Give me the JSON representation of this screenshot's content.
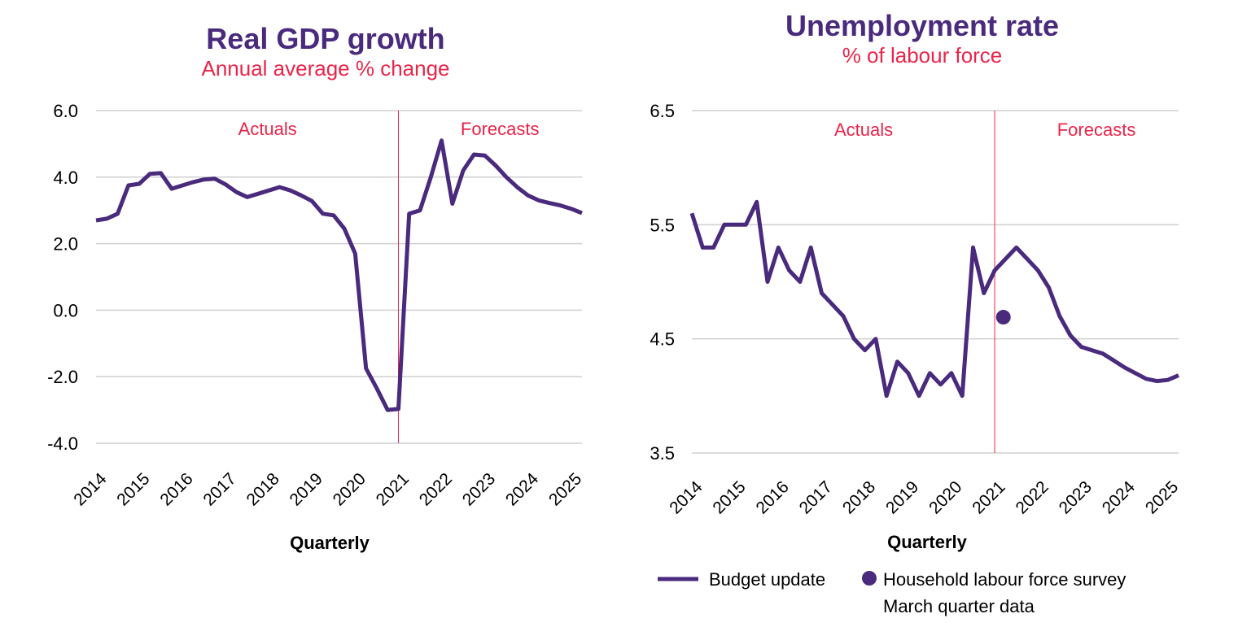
{
  "colors": {
    "series": "#4a2a7d",
    "accent": "#e8254a",
    "grid": "#d0d0d0",
    "text": "#000000"
  },
  "chart_data": [
    {
      "type": "line",
      "title": "Real GDP growth",
      "subtitle": "Annual average % change",
      "xlabel": "Quarterly",
      "ylabel": "",
      "ylim": [
        -4.0,
        6.0
      ],
      "yticks": [
        "6.0",
        "4.0",
        "2.0",
        "0.0",
        "-2.0",
        "-4.0"
      ],
      "yticks_values": [
        6,
        4,
        2,
        0,
        -2,
        -4
      ],
      "xticks": [
        "2014",
        "2015",
        "2016",
        "2017",
        "2018",
        "2019",
        "2020",
        "2021",
        "2022",
        "2023",
        "2024",
        "2025"
      ],
      "x_start": 2014.0,
      "x_step": 0.25,
      "divider_x": 2021.0,
      "regions": [
        "Actuals",
        "Forecasts"
      ],
      "grid": true,
      "series": [
        {
          "values": [
            2.7,
            2.75,
            2.9,
            3.75,
            3.8,
            4.1,
            4.12,
            3.65,
            3.75,
            3.85,
            3.93,
            3.95,
            3.78,
            3.55,
            3.4,
            3.5,
            3.6,
            3.7,
            3.6,
            3.45,
            3.28,
            2.9,
            2.85,
            2.45,
            1.7,
            -1.75,
            -2.35,
            -3.0,
            -2.97,
            2.9,
            3.0,
            4.0,
            5.1,
            3.2,
            4.2,
            4.68,
            4.65,
            4.35,
            4.0,
            3.7,
            3.45,
            3.3,
            3.22,
            3.15,
            3.05,
            2.92
          ]
        }
      ]
    },
    {
      "type": "line",
      "title": "Unemployment rate",
      "subtitle": "% of labour force",
      "xlabel": "Quarterly",
      "ylabel": "",
      "ylim": [
        3.5,
        6.5
      ],
      "yticks": [
        "6.5",
        "5.5",
        "4.5",
        "3.5"
      ],
      "yticks_values": [
        6.5,
        5.5,
        4.5,
        3.5
      ],
      "xticks": [
        "2014",
        "2015",
        "2016",
        "2017",
        "2018",
        "2019",
        "2020",
        "2021",
        "2022",
        "2023",
        "2024",
        "2025"
      ],
      "x_start": 2014.0,
      "x_step": 0.25,
      "divider_x": 2021.0,
      "regions": [
        "Actuals",
        "Forecasts"
      ],
      "grid": true,
      "series": [
        {
          "name": "Budget update",
          "values": [
            5.6,
            5.3,
            5.3,
            5.5,
            5.5,
            5.5,
            5.7,
            5.0,
            5.3,
            5.1,
            5.0,
            5.3,
            4.9,
            4.8,
            4.7,
            4.5,
            4.4,
            4.5,
            4.0,
            4.3,
            4.2,
            4.0,
            4.2,
            4.1,
            4.2,
            4.0,
            5.3,
            4.9,
            5.1,
            5.2,
            5.3,
            5.2,
            5.1,
            4.95,
            4.7,
            4.53,
            4.43,
            4.4,
            4.37,
            4.31,
            4.25,
            4.2,
            4.15,
            4.13,
            4.14,
            4.18
          ]
        }
      ],
      "point_series": [
        {
          "name": "Household labour force survey March quarter data",
          "x": 2021.2,
          "y": 4.69
        }
      ],
      "legend": [
        {
          "label": "Budget update",
          "kind": "line"
        },
        {
          "label": "Household labour force survey",
          "label2": "March quarter data",
          "kind": "dot"
        }
      ],
      "legend_position": "bottom"
    }
  ]
}
